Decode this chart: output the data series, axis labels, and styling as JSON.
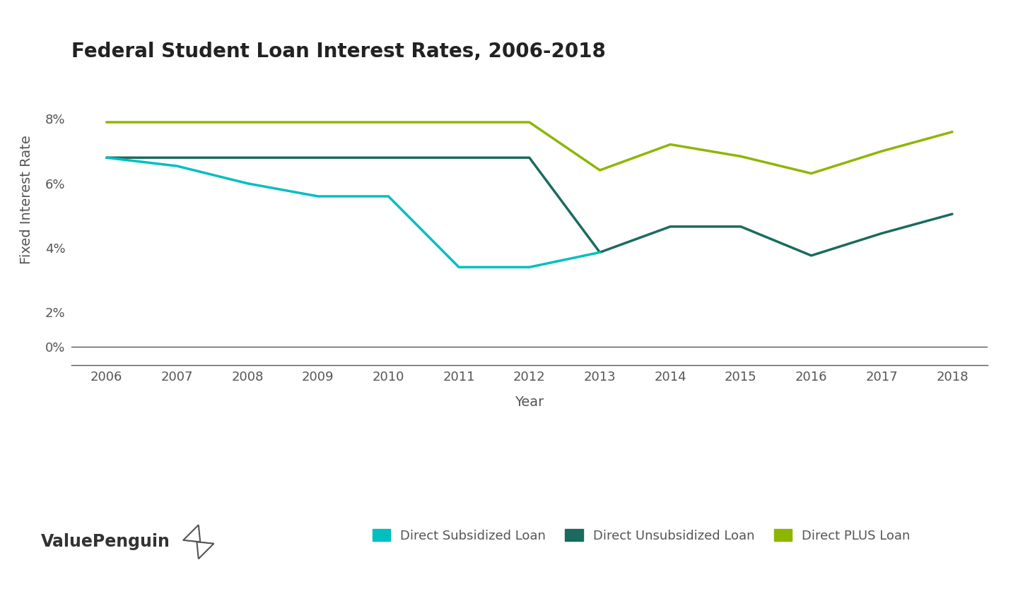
{
  "title": "Federal Student Loan Interest Rates, 2006-2018",
  "xlabel": "Year",
  "ylabel": "Fixed Interest Rate",
  "background_color": "#ffffff",
  "years_plus": [
    2006,
    2007,
    2008,
    2009,
    2010,
    2011,
    2012,
    2013,
    2014,
    2015,
    2016,
    2017,
    2018
  ],
  "plus_rates": [
    7.9,
    7.9,
    7.9,
    7.9,
    7.9,
    7.9,
    7.9,
    6.41,
    7.21,
    6.84,
    6.31,
    7.0,
    7.6
  ],
  "years_unsub": [
    2006,
    2007,
    2008,
    2009,
    2010,
    2011,
    2012,
    2013,
    2014,
    2015,
    2016,
    2017,
    2018
  ],
  "unsub_rates": [
    6.8,
    6.8,
    6.8,
    6.8,
    6.8,
    6.8,
    6.8,
    3.86,
    4.66,
    4.66,
    3.76,
    4.45,
    5.05
  ],
  "years_sub": [
    2006,
    2007,
    2008,
    2009,
    2010,
    2011,
    2012,
    2013
  ],
  "sub_rates": [
    6.8,
    6.54,
    6.0,
    5.6,
    5.6,
    3.4,
    3.4,
    3.86
  ],
  "color_plus": "#8db600",
  "color_unsub": "#1a6b5e",
  "color_sub": "#00bfbf",
  "line_width": 2.5,
  "title_fontsize": 20,
  "label_fontsize": 14,
  "tick_fontsize": 13,
  "legend_fontsize": 13,
  "yticks_main": [
    2,
    4,
    6,
    8
  ],
  "ytick_zero": 0,
  "ylim_main": [
    1.5,
    9.5
  ],
  "ylim_zero": [
    -0.3,
    0.3
  ],
  "xlim": [
    2005.5,
    2018.5
  ],
  "legend_labels": [
    "Direct Subsidized Loan",
    "Direct Unsubsidized Loan",
    "Direct PLUS Loan"
  ],
  "text_color": "#555555",
  "title_color": "#222222",
  "spine_color": "#555555",
  "valuepenguin_text": "ValuePenguin"
}
